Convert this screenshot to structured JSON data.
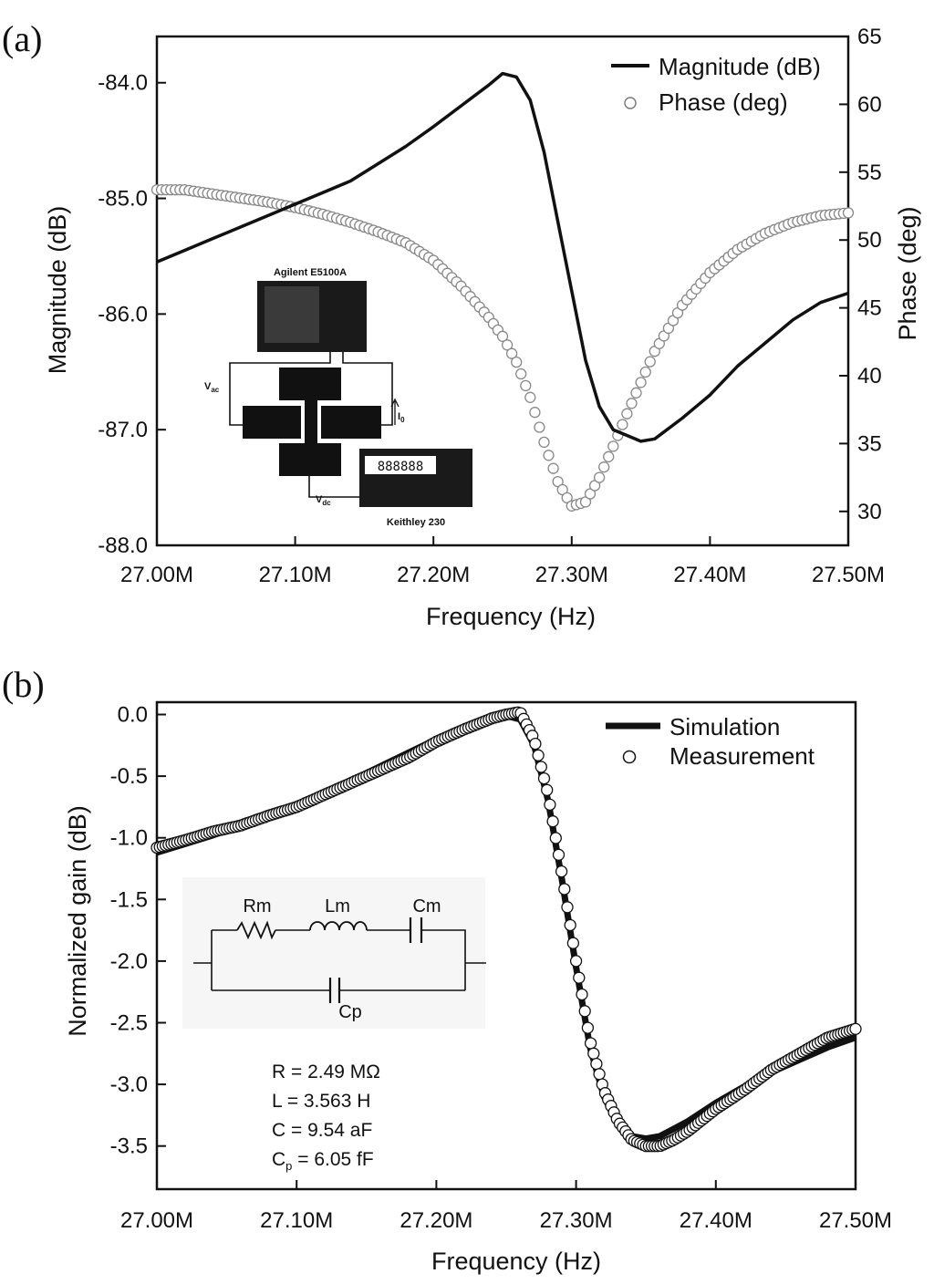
{
  "figure": {
    "panel_a_label": "(a)",
    "panel_b_label": "(b)"
  },
  "chart_data": [
    {
      "type": "line",
      "panel": "a",
      "xlabel": "Frequency (Hz)",
      "ylabel": "Magnitude (dB)",
      "y2label": "Phase (deg)",
      "xlim": [
        27.0,
        27.5
      ],
      "ylim": [
        -88.0,
        -83.6
      ],
      "y2lim": [
        27.5,
        65.0
      ],
      "x_ticks": [
        27.0,
        27.1,
        27.2,
        27.3,
        27.4,
        27.5
      ],
      "x_tick_labels": [
        "27.00M",
        "27.10M",
        "27.20M",
        "27.30M",
        "27.40M",
        "27.50M"
      ],
      "y_ticks": [
        -88.0,
        -87.0,
        -86.0,
        -85.0,
        -84.0
      ],
      "y_tick_labels": [
        "-88.0",
        "-87.0",
        "-86.0",
        "-85.0",
        "-84.0"
      ],
      "y2_ticks": [
        30,
        35,
        40,
        45,
        50,
        55,
        60,
        65
      ],
      "y2_tick_labels": [
        "30",
        "35",
        "40",
        "45",
        "50",
        "55",
        "60",
        "65"
      ],
      "legend": [
        "Magnitude (dB)",
        "Phase (deg)"
      ],
      "legend_position": "top-right",
      "series": [
        {
          "name": "Magnitude (dB)",
          "style": "line",
          "x": [
            27.0,
            27.02,
            27.04,
            27.06,
            27.08,
            27.1,
            27.12,
            27.14,
            27.16,
            27.18,
            27.2,
            27.22,
            27.24,
            27.25,
            27.26,
            27.27,
            27.28,
            27.29,
            27.3,
            27.31,
            27.32,
            27.33,
            27.34,
            27.35,
            27.36,
            27.38,
            27.4,
            27.42,
            27.44,
            27.46,
            27.48,
            27.5
          ],
          "y": [
            -85.55,
            -85.45,
            -85.35,
            -85.25,
            -85.15,
            -85.05,
            -84.95,
            -84.85,
            -84.7,
            -84.55,
            -84.38,
            -84.2,
            -84.02,
            -83.92,
            -83.95,
            -84.15,
            -84.6,
            -85.2,
            -85.8,
            -86.4,
            -86.8,
            -87.0,
            -87.05,
            -87.1,
            -87.08,
            -86.9,
            -86.7,
            -86.45,
            -86.25,
            -86.05,
            -85.9,
            -85.82
          ]
        },
        {
          "name": "Phase (deg)",
          "style": "markers",
          "x": [
            27.0,
            27.02,
            27.04,
            27.06,
            27.08,
            27.1,
            27.12,
            27.14,
            27.16,
            27.18,
            27.2,
            27.22,
            27.24,
            27.25,
            27.26,
            27.27,
            27.28,
            27.29,
            27.3,
            27.31,
            27.32,
            27.33,
            27.34,
            27.35,
            27.36,
            27.38,
            27.4,
            27.42,
            27.44,
            27.46,
            27.48,
            27.5
          ],
          "y": [
            53.7,
            53.7,
            53.4,
            53.1,
            52.8,
            52.4,
            51.9,
            51.3,
            50.6,
            49.8,
            48.5,
            46.6,
            44.3,
            42.9,
            41.0,
            38.4,
            35.1,
            32.2,
            30.4,
            30.7,
            32.5,
            34.8,
            37.2,
            39.5,
            41.8,
            45.2,
            47.6,
            49.3,
            50.5,
            51.3,
            51.8,
            52.0
          ]
        }
      ],
      "inset": {
        "instrument_top": "Agilent E5100A",
        "instrument_bottom": "Keithley 230",
        "display_digits": "888888",
        "v_ac": "V",
        "v_ac_sub": "ac",
        "v_dc": "V",
        "v_dc_sub": "dc",
        "i_label": "I",
        "i_sub": "0"
      }
    },
    {
      "type": "scatter",
      "panel": "b",
      "xlabel": "Frequency (Hz)",
      "ylabel": "Normalized gain (dB)",
      "xlim": [
        27.0,
        27.5
      ],
      "ylim": [
        -3.85,
        0.1
      ],
      "x_ticks": [
        27.0,
        27.1,
        27.2,
        27.3,
        27.4,
        27.5
      ],
      "x_tick_labels": [
        "27.00M",
        "27.10M",
        "27.20M",
        "27.30M",
        "27.40M",
        "27.50M"
      ],
      "y_ticks": [
        0.0,
        -0.5,
        -1.0,
        -1.5,
        -2.0,
        -2.5,
        -3.0,
        -3.5
      ],
      "y_tick_labels": [
        "0.0",
        "-0.5",
        "-1.0",
        "-1.5",
        "-2.0",
        "-2.5",
        "-3.0",
        "-3.5"
      ],
      "legend": [
        "Simulation",
        "Measurement"
      ],
      "legend_position": "top-right",
      "series": [
        {
          "name": "Simulation",
          "style": "line",
          "x": [
            27.0,
            27.02,
            27.04,
            27.06,
            27.08,
            27.1,
            27.12,
            27.14,
            27.16,
            27.18,
            27.2,
            27.22,
            27.24,
            27.25,
            27.26,
            27.27,
            27.28,
            27.29,
            27.3,
            27.31,
            27.32,
            27.33,
            27.34,
            27.35,
            27.36,
            27.37,
            27.38,
            27.4,
            27.42,
            27.44,
            27.46,
            27.48,
            27.5
          ],
          "y": [
            -1.12,
            -1.05,
            -0.98,
            -0.9,
            -0.82,
            -0.73,
            -0.63,
            -0.53,
            -0.42,
            -0.31,
            -0.2,
            -0.1,
            -0.03,
            -0.01,
            -0.04,
            -0.25,
            -0.7,
            -1.35,
            -2.05,
            -2.7,
            -3.1,
            -3.33,
            -3.42,
            -3.44,
            -3.42,
            -3.36,
            -3.3,
            -3.15,
            -3.02,
            -2.9,
            -2.8,
            -2.7,
            -2.62
          ]
        },
        {
          "name": "Measurement",
          "style": "markers",
          "x": [
            27.0,
            27.02,
            27.04,
            27.06,
            27.08,
            27.1,
            27.12,
            27.14,
            27.16,
            27.18,
            27.2,
            27.22,
            27.24,
            27.25,
            27.26,
            27.27,
            27.28,
            27.29,
            27.3,
            27.31,
            27.32,
            27.33,
            27.34,
            27.35,
            27.36,
            27.37,
            27.38,
            27.4,
            27.42,
            27.44,
            27.46,
            27.48,
            27.5
          ],
          "y": [
            -1.08,
            -1.02,
            -0.95,
            -0.9,
            -0.82,
            -0.75,
            -0.65,
            -0.55,
            -0.45,
            -0.35,
            -0.22,
            -0.12,
            -0.03,
            0.0,
            0.02,
            -0.2,
            -0.65,
            -1.3,
            -2.0,
            -2.65,
            -3.05,
            -3.3,
            -3.45,
            -3.5,
            -3.5,
            -3.45,
            -3.38,
            -3.2,
            -3.05,
            -2.88,
            -2.75,
            -2.62,
            -2.55
          ]
        }
      ],
      "inset": {
        "rm": "Rm",
        "lm": "Lm",
        "cm": "Cm",
        "cp": "Cp",
        "params": [
          "R = 2.49 MΩ",
          "L = 3.563 H",
          "C = 9.54 aF"
        ],
        "cp_param_prefix": "C",
        "cp_param_sub": "p",
        "cp_param_value": " = 6.05 fF"
      }
    }
  ]
}
